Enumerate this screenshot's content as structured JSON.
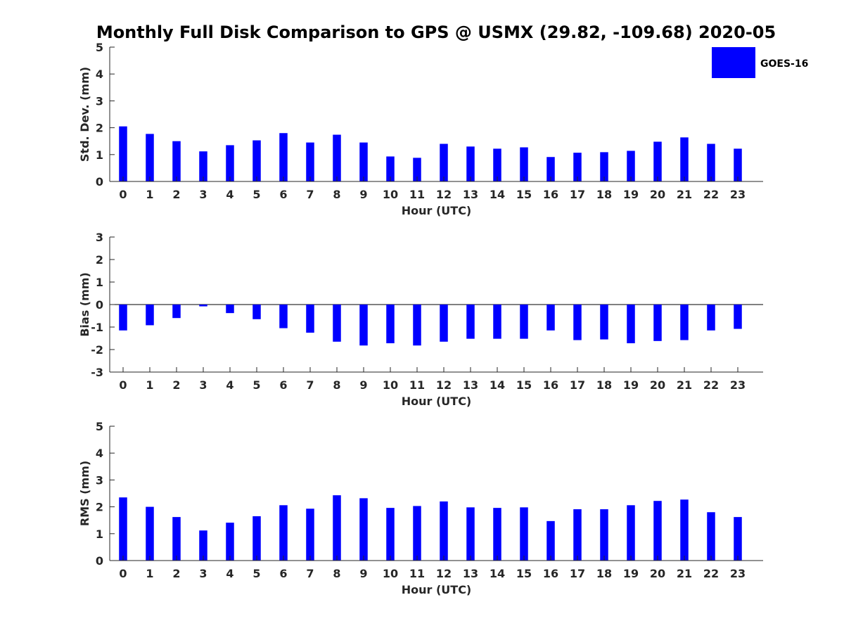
{
  "figure": {
    "title": "Monthly Full Disk Comparison to GPS @ USMX (29.82, -109.68) 2020-05"
  },
  "legend": {
    "label": "GOES-16",
    "color": "#0000ff"
  },
  "chart_data": [
    {
      "type": "bar",
      "id": "stddev",
      "xlabel": "Hour (UTC)",
      "ylabel": "Std. Dev. (mm)",
      "ylim": [
        0,
        5
      ],
      "yticks": [
        0,
        1,
        2,
        3,
        4,
        5
      ],
      "categories": [
        "0",
        "1",
        "2",
        "3",
        "4",
        "5",
        "6",
        "7",
        "8",
        "9",
        "10",
        "11",
        "12",
        "13",
        "14",
        "15",
        "16",
        "17",
        "18",
        "19",
        "20",
        "21",
        "22",
        "23"
      ],
      "series": [
        {
          "name": "GOES-16",
          "color": "#0000ff",
          "values": [
            2.05,
            1.77,
            1.5,
            1.12,
            1.35,
            1.53,
            1.8,
            1.45,
            1.74,
            1.45,
            0.93,
            0.88,
            1.4,
            1.3,
            1.22,
            1.27,
            0.91,
            1.07,
            1.09,
            1.14,
            1.48,
            1.64,
            1.4,
            1.22
          ]
        }
      ],
      "legend": "top-right",
      "grid": false
    },
    {
      "type": "bar",
      "id": "bias",
      "xlabel": "Hour (UTC)",
      "ylabel": "Bias (mm)",
      "ylim": [
        -3,
        3
      ],
      "yticks": [
        -3,
        -2,
        -1,
        0,
        1,
        2,
        3
      ],
      "categories": [
        "0",
        "1",
        "2",
        "3",
        "4",
        "5",
        "6",
        "7",
        "8",
        "9",
        "10",
        "11",
        "12",
        "13",
        "14",
        "15",
        "16",
        "17",
        "18",
        "19",
        "20",
        "21",
        "22",
        "23"
      ],
      "series": [
        {
          "name": "GOES-16",
          "color": "#0000ff",
          "values": [
            -1.15,
            -0.92,
            -0.6,
            -0.08,
            -0.38,
            -0.65,
            -1.05,
            -1.25,
            -1.65,
            -1.82,
            -1.72,
            -1.82,
            -1.65,
            -1.52,
            -1.52,
            -1.52,
            -1.15,
            -1.58,
            -1.55,
            -1.72,
            -1.62,
            -1.58,
            -1.15,
            -1.08
          ]
        }
      ],
      "zero_line": true,
      "grid": false
    },
    {
      "type": "bar",
      "id": "rms",
      "xlabel": "Hour (UTC)",
      "ylabel": "RMS (mm)",
      "ylim": [
        0,
        5
      ],
      "yticks": [
        0,
        1,
        2,
        3,
        4,
        5
      ],
      "categories": [
        "0",
        "1",
        "2",
        "3",
        "4",
        "5",
        "6",
        "7",
        "8",
        "9",
        "10",
        "11",
        "12",
        "13",
        "14",
        "15",
        "16",
        "17",
        "18",
        "19",
        "20",
        "21",
        "22",
        "23"
      ],
      "series": [
        {
          "name": "GOES-16",
          "color": "#0000ff",
          "values": [
            2.35,
            2.0,
            1.62,
            1.12,
            1.41,
            1.65,
            2.06,
            1.93,
            2.43,
            2.32,
            1.96,
            2.03,
            2.2,
            1.98,
            1.96,
            1.98,
            1.47,
            1.91,
            1.91,
            2.06,
            2.22,
            2.27,
            1.8,
            1.62
          ]
        }
      ],
      "grid": false
    }
  ]
}
